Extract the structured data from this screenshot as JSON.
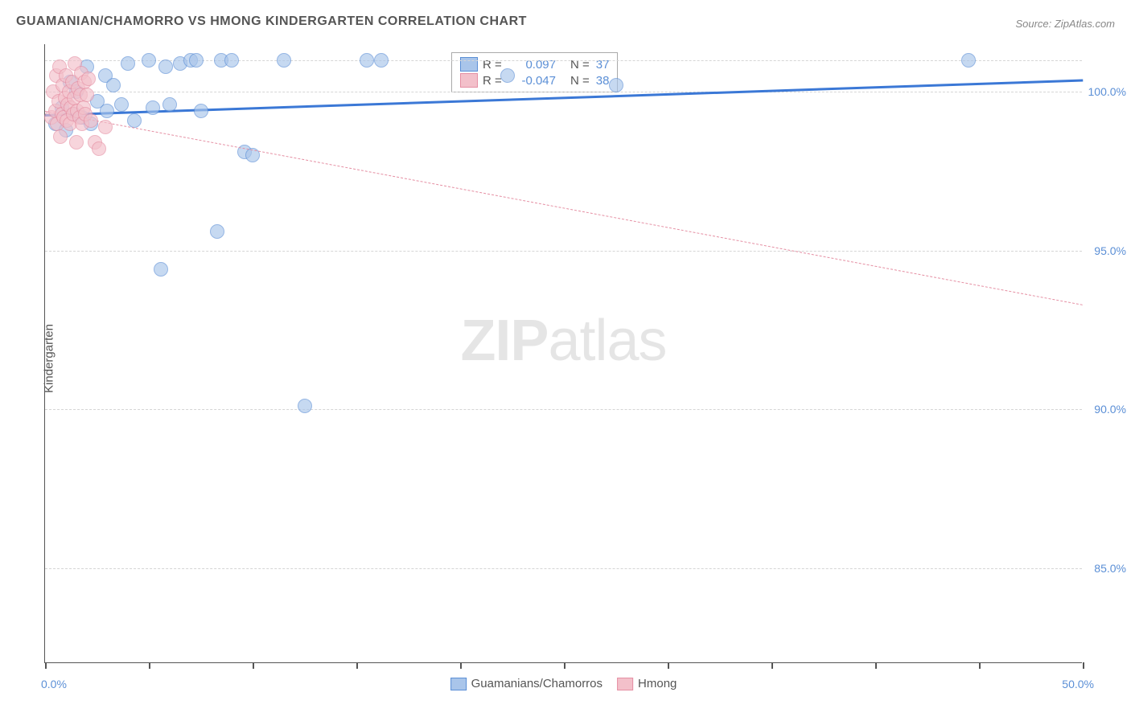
{
  "title": "GUAMANIAN/CHAMORRO VS HMONG KINDERGARTEN CORRELATION CHART",
  "source": "Source: ZipAtlas.com",
  "y_axis_title": "Kindergarten",
  "watermark": {
    "bold": "ZIP",
    "light": "atlas"
  },
  "chart": {
    "type": "scatter",
    "background_color": "#ffffff",
    "grid_color": "#d5d5d5",
    "axis_color": "#555555",
    "xlim": [
      0,
      50
    ],
    "ylim": [
      82,
      101.5
    ],
    "x_ticks": [
      0,
      5,
      10,
      15,
      20,
      25,
      30,
      35,
      40,
      45,
      50
    ],
    "x_tick_labels": {
      "0": "0.0%",
      "50": "50.0%"
    },
    "y_gridlines": [
      85,
      90,
      95,
      100,
      101
    ],
    "y_tick_labels": {
      "85": "85.0%",
      "90": "90.0%",
      "95": "95.0%",
      "100": "100.0%"
    },
    "series": [
      {
        "name": "Guamanians/Chamorros",
        "color_fill": "#a9c5ea",
        "color_stroke": "#5b8fd6",
        "opacity": 0.65,
        "marker_radius": 9,
        "r_value": "0.097",
        "n_value": "37",
        "trend": {
          "x1": 0,
          "y1": 99.3,
          "x2": 50,
          "y2": 100.4,
          "style": "solid",
          "width": 3,
          "color": "#3b78d6"
        },
        "points": [
          {
            "x": 0.5,
            "y": 99.0
          },
          {
            "x": 0.8,
            "y": 99.5
          },
          {
            "x": 1.0,
            "y": 98.8
          },
          {
            "x": 1.2,
            "y": 100.3
          },
          {
            "x": 1.4,
            "y": 99.3
          },
          {
            "x": 1.5,
            "y": 100.0
          },
          {
            "x": 1.8,
            "y": 99.2
          },
          {
            "x": 2.0,
            "y": 100.8
          },
          {
            "x": 2.2,
            "y": 99.0
          },
          {
            "x": 2.5,
            "y": 99.7
          },
          {
            "x": 2.9,
            "y": 100.5
          },
          {
            "x": 3.0,
            "y": 99.4
          },
          {
            "x": 3.3,
            "y": 100.2
          },
          {
            "x": 3.7,
            "y": 99.6
          },
          {
            "x": 4.0,
            "y": 100.9
          },
          {
            "x": 4.3,
            "y": 99.1
          },
          {
            "x": 5.0,
            "y": 101.0
          },
          {
            "x": 5.2,
            "y": 99.5
          },
          {
            "x": 5.6,
            "y": 94.4
          },
          {
            "x": 5.8,
            "y": 100.8
          },
          {
            "x": 6.0,
            "y": 99.6
          },
          {
            "x": 6.5,
            "y": 100.9
          },
          {
            "x": 7.0,
            "y": 101.0
          },
          {
            "x": 7.3,
            "y": 101.0
          },
          {
            "x": 7.5,
            "y": 99.4
          },
          {
            "x": 8.3,
            "y": 95.6
          },
          {
            "x": 8.5,
            "y": 101.0
          },
          {
            "x": 9.0,
            "y": 101.0
          },
          {
            "x": 9.6,
            "y": 98.1
          },
          {
            "x": 10.0,
            "y": 98.0
          },
          {
            "x": 11.5,
            "y": 101.0
          },
          {
            "x": 12.5,
            "y": 90.1
          },
          {
            "x": 15.5,
            "y": 101.0
          },
          {
            "x": 16.2,
            "y": 101.0
          },
          {
            "x": 22.3,
            "y": 100.5
          },
          {
            "x": 27.5,
            "y": 100.2
          },
          {
            "x": 44.5,
            "y": 101.0
          }
        ]
      },
      {
        "name": "Hmong",
        "color_fill": "#f3c0ca",
        "color_stroke": "#e58fa3",
        "opacity": 0.65,
        "marker_radius": 9,
        "r_value": "-0.047",
        "n_value": "38",
        "trend": {
          "x1": 0,
          "y1": 99.4,
          "x2": 50,
          "y2": 93.3,
          "style": "dashed",
          "width": 1.2,
          "color": "#e58fa3"
        },
        "points": [
          {
            "x": 0.3,
            "y": 99.2
          },
          {
            "x": 0.4,
            "y": 100.0
          },
          {
            "x": 0.5,
            "y": 99.4
          },
          {
            "x": 0.55,
            "y": 100.5
          },
          {
            "x": 0.6,
            "y": 99.0
          },
          {
            "x": 0.65,
            "y": 99.7
          },
          {
            "x": 0.7,
            "y": 100.8
          },
          {
            "x": 0.75,
            "y": 98.6
          },
          {
            "x": 0.8,
            "y": 99.3
          },
          {
            "x": 0.85,
            "y": 100.2
          },
          {
            "x": 0.9,
            "y": 99.2
          },
          {
            "x": 0.95,
            "y": 99.8
          },
          {
            "x": 1.0,
            "y": 100.5
          },
          {
            "x": 1.05,
            "y": 99.1
          },
          {
            "x": 1.1,
            "y": 99.6
          },
          {
            "x": 1.15,
            "y": 100.0
          },
          {
            "x": 1.2,
            "y": 99.0
          },
          {
            "x": 1.25,
            "y": 99.5
          },
          {
            "x": 1.3,
            "y": 100.3
          },
          {
            "x": 1.35,
            "y": 99.3
          },
          {
            "x": 1.4,
            "y": 99.8
          },
          {
            "x": 1.45,
            "y": 100.9
          },
          {
            "x": 1.5,
            "y": 98.4
          },
          {
            "x": 1.55,
            "y": 99.4
          },
          {
            "x": 1.6,
            "y": 100.1
          },
          {
            "x": 1.65,
            "y": 99.2
          },
          {
            "x": 1.7,
            "y": 99.9
          },
          {
            "x": 1.75,
            "y": 100.6
          },
          {
            "x": 1.8,
            "y": 99.0
          },
          {
            "x": 1.85,
            "y": 99.5
          },
          {
            "x": 1.9,
            "y": 100.3
          },
          {
            "x": 1.95,
            "y": 99.3
          },
          {
            "x": 2.0,
            "y": 99.9
          },
          {
            "x": 2.1,
            "y": 100.4
          },
          {
            "x": 2.2,
            "y": 99.1
          },
          {
            "x": 2.4,
            "y": 98.4
          },
          {
            "x": 2.6,
            "y": 98.2
          },
          {
            "x": 2.9,
            "y": 98.9
          }
        ]
      }
    ],
    "bottom_legend": [
      {
        "label": "Guamanians/Chamorros",
        "fill": "#a9c5ea",
        "stroke": "#5b8fd6"
      },
      {
        "label": "Hmong",
        "fill": "#f3c0ca",
        "stroke": "#e58fa3"
      }
    ]
  }
}
